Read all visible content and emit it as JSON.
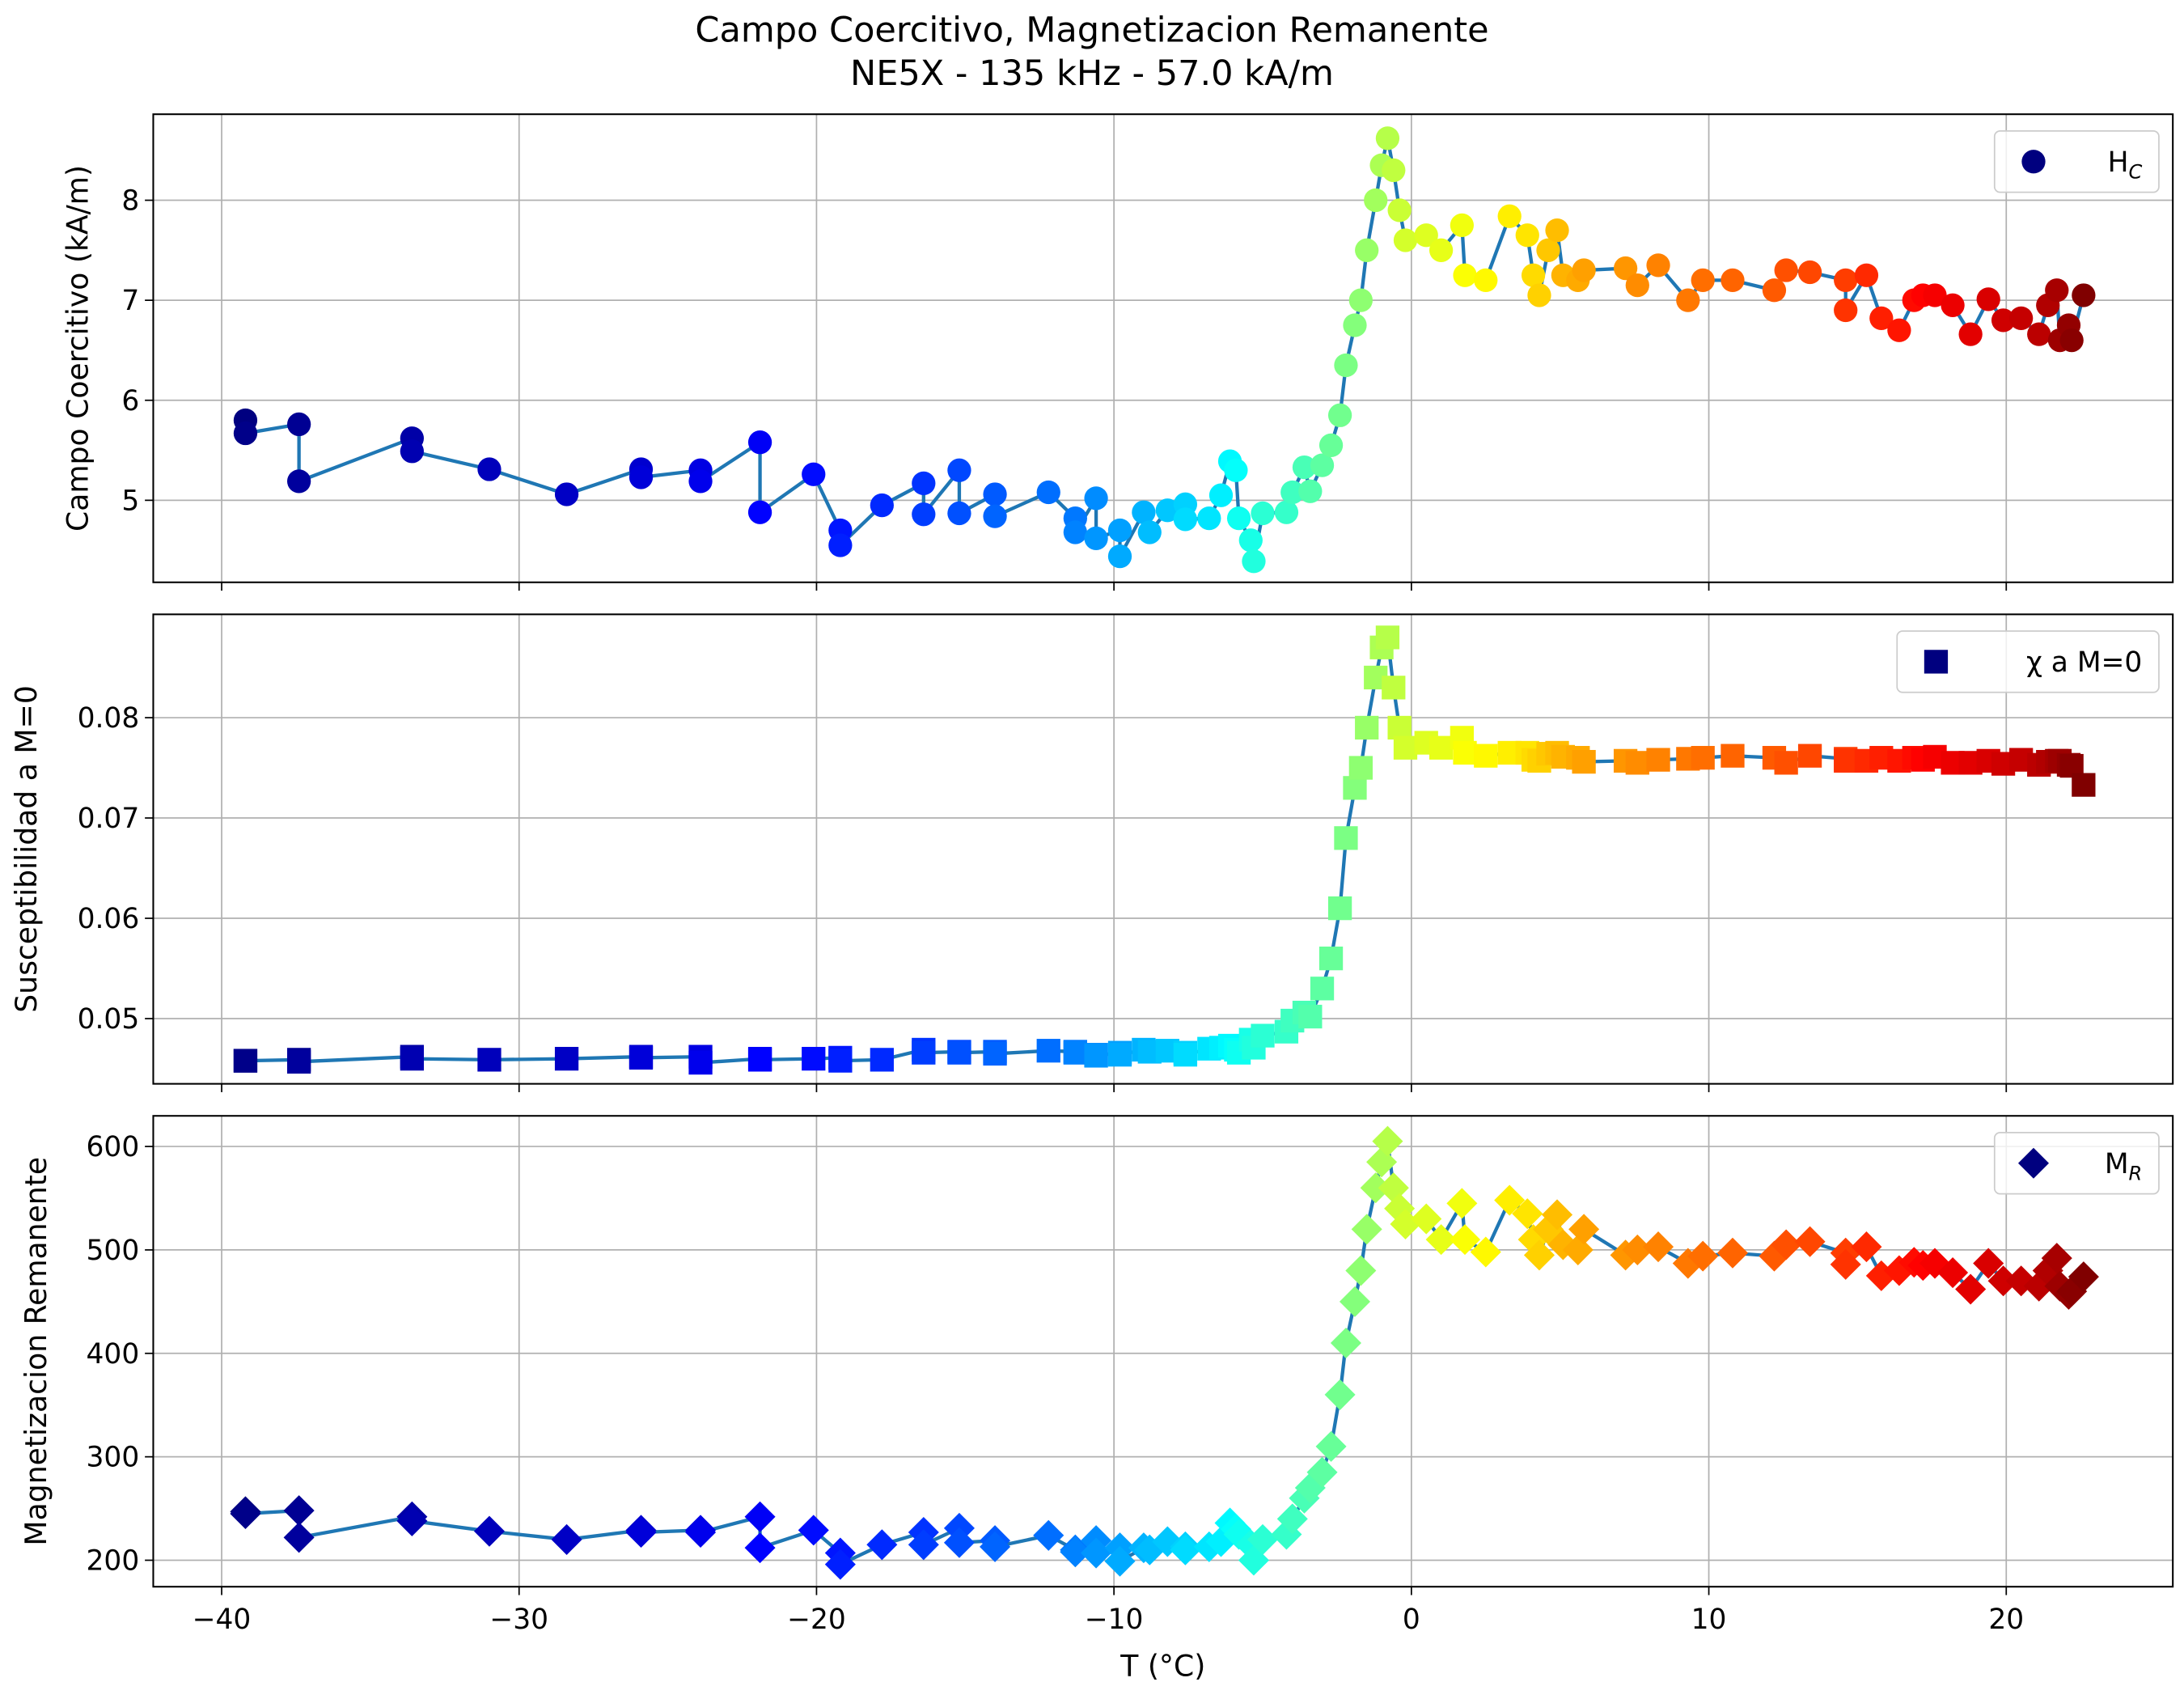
{
  "chart_data": [
    {
      "type": "scatter",
      "title": [
        "Campo Coercitivo, Magnetizacion Remanente",
        "NE5X - 135 kHz - 57.0 kA/m"
      ],
      "ylabel": "Campo Coercitivo (kA/m)",
      "marker": "circle",
      "colormap": "jet",
      "line_color": "#1f77b4",
      "grid": true,
      "legend": "upper right",
      "series": [
        {
          "name": "H",
          "name_sub": "C",
          "color": "#00007f"
        }
      ],
      "xlim": [
        -42.3,
        25.6
      ],
      "ylim": [
        4.18,
        8.86
      ],
      "yticks": [
        5,
        6,
        7,
        8
      ],
      "xticks": [
        -40,
        -30,
        -20,
        -10,
        0,
        10,
        20
      ],
      "x": [
        -39.2,
        -39.2,
        -37.4,
        -37.4,
        -33.6,
        -33.6,
        -31.0,
        -28.4,
        -25.9,
        -25.9,
        -23.9,
        -23.9,
        -21.9,
        -21.9,
        -20.1,
        -19.2,
        -19.2,
        -17.8,
        -16.4,
        -16.4,
        -15.2,
        -15.2,
        -14.0,
        -14.0,
        -12.2,
        -11.3,
        -11.3,
        -10.6,
        -10.6,
        -9.8,
        -9.8,
        -9.0,
        -8.8,
        -8.2,
        -7.6,
        -7.6,
        -6.8,
        -6.4,
        -6.1,
        -5.9,
        -5.8,
        -5.4,
        -5.3,
        -5.0,
        -4.2,
        -4.0,
        -3.6,
        -3.4,
        -3.0,
        -2.7,
        -2.4,
        -2.2,
        -1.9,
        -1.7,
        -1.5,
        -1.2,
        -1.0,
        -0.8,
        -0.6,
        -0.4,
        -0.2,
        0.5,
        1.0,
        1.7,
        1.8,
        2.5,
        3.3,
        3.9,
        4.1,
        4.3,
        4.6,
        4.9,
        5.1,
        5.6,
        5.8,
        7.2,
        7.6,
        8.3,
        9.3,
        9.8,
        10.8,
        12.2,
        12.6,
        13.4,
        14.6,
        14.6,
        15.3,
        15.8,
        16.4,
        16.9,
        17.2,
        17.6,
        18.2,
        18.8,
        19.4,
        19.9,
        20.5,
        21.1,
        21.4,
        21.7,
        21.8,
        22.1,
        22.2,
        22.6
      ],
      "values": [
        5.8,
        5.67,
        5.76,
        5.19,
        5.62,
        5.49,
        5.31,
        5.06,
        5.31,
        5.23,
        5.3,
        5.19,
        5.58,
        4.88,
        5.26,
        4.7,
        4.55,
        4.95,
        5.17,
        4.86,
        5.3,
        4.87,
        5.06,
        4.84,
        5.08,
        4.82,
        4.68,
        5.02,
        4.62,
        4.7,
        4.44,
        4.88,
        4.68,
        4.9,
        4.96,
        4.81,
        4.82,
        5.05,
        5.39,
        5.3,
        4.82,
        4.6,
        4.39,
        4.87,
        4.88,
        5.08,
        5.33,
        5.09,
        5.35,
        5.55,
        5.85,
        6.35,
        6.75,
        7.0,
        7.5,
        8.0,
        8.35,
        8.62,
        8.3,
        7.9,
        7.6,
        7.65,
        7.5,
        7.75,
        7.25,
        7.2,
        7.84,
        7.65,
        7.25,
        7.05,
        7.5,
        7.7,
        7.25,
        7.2,
        7.3,
        7.32,
        7.15,
        7.35,
        7.0,
        7.2,
        7.2,
        7.1,
        7.3,
        7.28,
        7.2,
        6.9,
        7.25,
        6.82,
        6.7,
        7.0,
        7.05,
        7.05,
        6.95,
        6.66,
        7.01,
        6.8,
        6.82,
        6.66,
        6.95,
        7.1,
        6.6,
        6.75,
        6.6,
        7.05
      ]
    },
    {
      "type": "scatter",
      "ylabel": "Susceptibilidad a M=0",
      "marker": "square",
      "colormap": "jet",
      "line_color": "#1f77b4",
      "grid": true,
      "legend": "upper right",
      "series": [
        {
          "name": "χ a M=0",
          "color": "#00007f"
        }
      ],
      "xlim": [
        -42.3,
        25.6
      ],
      "ylim": [
        0.0435,
        0.0903
      ],
      "yticks": [
        0.05,
        0.06,
        0.07,
        0.08
      ],
      "xticks": [
        -40,
        -30,
        -20,
        -10,
        0,
        10,
        20
      ],
      "x": [
        -39.2,
        -39.2,
        -37.4,
        -37.4,
        -33.6,
        -33.6,
        -31.0,
        -28.4,
        -25.9,
        -25.9,
        -23.9,
        -23.9,
        -21.9,
        -21.9,
        -20.1,
        -19.2,
        -19.2,
        -17.8,
        -16.4,
        -16.4,
        -15.2,
        -15.2,
        -14.0,
        -14.0,
        -12.2,
        -11.3,
        -11.3,
        -10.6,
        -10.6,
        -9.8,
        -9.8,
        -9.0,
        -8.8,
        -8.2,
        -7.6,
        -7.6,
        -6.8,
        -6.4,
        -6.1,
        -5.9,
        -5.8,
        -5.4,
        -5.3,
        -5.0,
        -4.2,
        -4.0,
        -3.6,
        -3.4,
        -3.0,
        -2.7,
        -2.4,
        -2.2,
        -1.9,
        -1.7,
        -1.5,
        -1.2,
        -1.0,
        -0.8,
        -0.6,
        -0.4,
        -0.2,
        0.5,
        1.0,
        1.7,
        1.8,
        2.5,
        3.3,
        3.9,
        4.1,
        4.3,
        4.6,
        4.9,
        5.1,
        5.6,
        5.8,
        7.2,
        7.6,
        8.3,
        9.3,
        9.8,
        10.8,
        12.2,
        12.6,
        13.4,
        14.6,
        14.6,
        15.3,
        15.8,
        16.4,
        16.9,
        17.2,
        17.6,
        18.2,
        18.8,
        19.4,
        19.9,
        20.5,
        21.1,
        21.4,
        21.7,
        21.8,
        22.1,
        22.2,
        22.6
      ],
      "values": [
        0.0458,
        0.0458,
        0.0459,
        0.0457,
        0.0462,
        0.046,
        0.0459,
        0.046,
        0.0462,
        0.0461,
        0.0462,
        0.0456,
        0.046,
        0.0459,
        0.046,
        0.0461,
        0.0458,
        0.0459,
        0.0469,
        0.0466,
        0.0467,
        0.0466,
        0.0467,
        0.0465,
        0.0468,
        0.0467,
        0.0466,
        0.0464,
        0.0463,
        0.0466,
        0.0464,
        0.0469,
        0.0467,
        0.0468,
        0.0466,
        0.0464,
        0.047,
        0.0471,
        0.0473,
        0.0469,
        0.0466,
        0.0479,
        0.0471,
        0.0483,
        0.0487,
        0.0498,
        0.0506,
        0.0502,
        0.053,
        0.056,
        0.061,
        0.068,
        0.073,
        0.075,
        0.079,
        0.084,
        0.087,
        0.088,
        0.083,
        0.079,
        0.077,
        0.0775,
        0.077,
        0.078,
        0.0765,
        0.0762,
        0.0765,
        0.0765,
        0.0758,
        0.0757,
        0.0764,
        0.0765,
        0.0761,
        0.076,
        0.0756,
        0.0757,
        0.0755,
        0.0758,
        0.0759,
        0.076,
        0.0762,
        0.076,
        0.0755,
        0.0762,
        0.0759,
        0.0757,
        0.0757,
        0.076,
        0.0757,
        0.076,
        0.0758,
        0.0761,
        0.0755,
        0.0755,
        0.0757,
        0.0754,
        0.0758,
        0.0753,
        0.0756,
        0.0757,
        0.0757,
        0.0753,
        0.0752,
        0.0733
      ]
    },
    {
      "type": "scatter",
      "ylabel": "Magnetizacion Remanente",
      "xlabel": "T (°C)",
      "marker": "diamond",
      "colormap": "jet",
      "line_color": "#1f77b4",
      "grid": true,
      "legend": "upper right",
      "series": [
        {
          "name": "M",
          "name_sub": "R",
          "color": "#00007f"
        }
      ],
      "xlim": [
        -42.3,
        25.6
      ],
      "ylim": [
        174.4,
        629.6
      ],
      "yticks": [
        200,
        300,
        400,
        500,
        600
      ],
      "xticks": [
        {
          "value": -40,
          "label": "−40"
        },
        {
          "value": -30,
          "label": "−30"
        },
        {
          "value": -20,
          "label": "−20"
        },
        {
          "value": -10,
          "label": "−10"
        },
        0,
        10,
        20
      ],
      "x": [
        -39.2,
        -39.2,
        -37.4,
        -37.4,
        -33.6,
        -33.6,
        -31.0,
        -28.4,
        -25.9,
        -25.9,
        -23.9,
        -23.9,
        -21.9,
        -21.9,
        -20.1,
        -19.2,
        -19.2,
        -17.8,
        -16.4,
        -16.4,
        -15.2,
        -15.2,
        -14.0,
        -14.0,
        -12.2,
        -11.3,
        -11.3,
        -10.6,
        -10.6,
        -9.8,
        -9.8,
        -9.0,
        -8.8,
        -8.2,
        -7.6,
        -7.6,
        -6.8,
        -6.4,
        -6.1,
        -5.9,
        -5.8,
        -5.4,
        -5.3,
        -5.0,
        -4.2,
        -4.0,
        -3.6,
        -3.4,
        -3.0,
        -2.7,
        -2.4,
        -2.2,
        -1.9,
        -1.7,
        -1.5,
        -1.2,
        -1.0,
        -0.8,
        -0.6,
        -0.4,
        -0.2,
        0.5,
        1.0,
        1.7,
        1.8,
        2.5,
        3.3,
        3.9,
        4.1,
        4.3,
        4.6,
        4.9,
        5.1,
        5.6,
        5.8,
        7.2,
        7.6,
        8.3,
        9.3,
        9.8,
        10.8,
        12.2,
        12.6,
        13.4,
        14.6,
        14.6,
        15.3,
        15.8,
        16.4,
        16.9,
        17.2,
        17.6,
        18.2,
        18.8,
        19.4,
        19.9,
        20.5,
        21.1,
        21.4,
        21.7,
        21.8,
        22.1,
        22.2,
        22.6
      ],
      "values": [
        247,
        245,
        248,
        222,
        242,
        238,
        228,
        220,
        229,
        227,
        229,
        227,
        242,
        212,
        229,
        207,
        196,
        215,
        227,
        215,
        231,
        217,
        219,
        213,
        224,
        210,
        208,
        219,
        207,
        212,
        199,
        212,
        210,
        218,
        213,
        210,
        213,
        218,
        236,
        230,
        225,
        215,
        200,
        220,
        225,
        240,
        260,
        270,
        285,
        310,
        360,
        410,
        450,
        480,
        520,
        560,
        585,
        605,
        560,
        540,
        525,
        530,
        510,
        545,
        510,
        498,
        548,
        535,
        510,
        495,
        520,
        534,
        505,
        500,
        520,
        495,
        500,
        503,
        487,
        494,
        497,
        494,
        505,
        508,
        497,
        486,
        503,
        475,
        480,
        488,
        485,
        487,
        478,
        462,
        487,
        470,
        470,
        465,
        480,
        492,
        465,
        457,
        460,
        474
      ]
    }
  ]
}
